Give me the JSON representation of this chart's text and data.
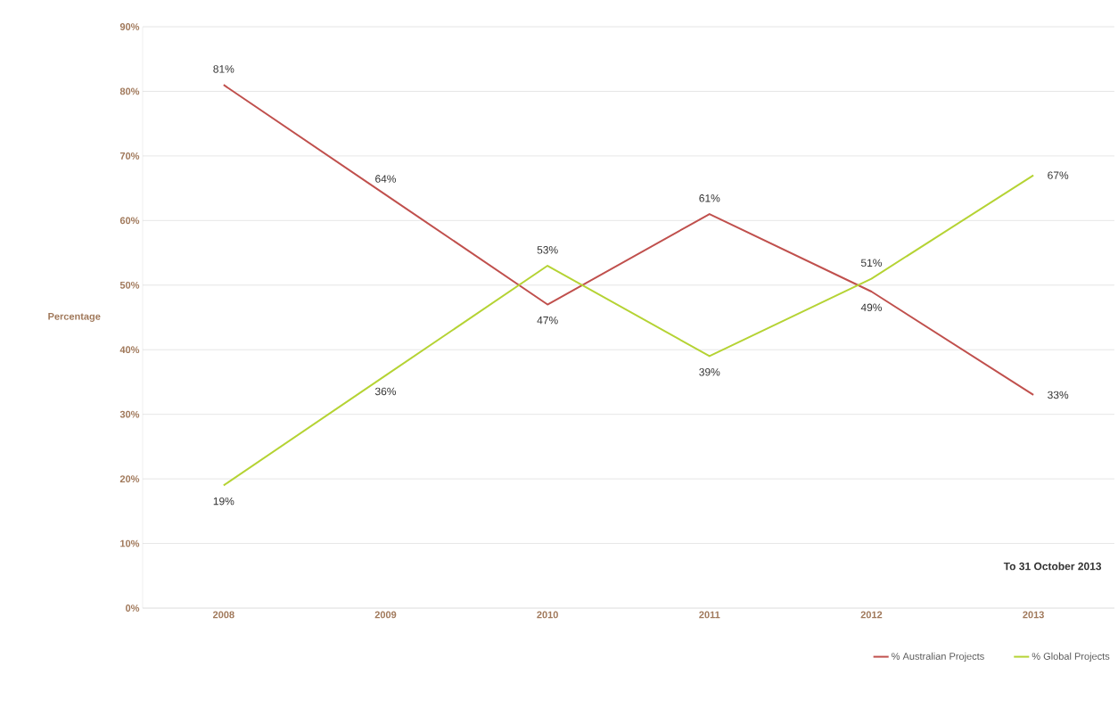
{
  "chart_data": {
    "type": "line",
    "ylabel": "Percentage",
    "annotations": [
      "To 31 October 2013"
    ],
    "categories": [
      "2008",
      "2009",
      "2010",
      "2011",
      "2012",
      "2013"
    ],
    "series": [
      {
        "name": "% Australian Projects",
        "color": "#c0504d",
        "values": [
          81,
          64,
          47,
          61,
          49,
          33
        ],
        "value_labels": [
          "81%",
          "64%",
          "47%",
          "61%",
          "49%",
          "33%"
        ]
      },
      {
        "name": "% Global Projects",
        "color": "#b5d334",
        "values": [
          19,
          36,
          53,
          39,
          51,
          67
        ],
        "value_labels": [
          "19%",
          "36%",
          "53%",
          "39%",
          "51%",
          "67%"
        ]
      }
    ],
    "ylim": [
      0,
      90
    ],
    "yticks": [
      {
        "value": 0,
        "label": "0%"
      },
      {
        "value": 10,
        "label": "10%"
      },
      {
        "value": 20,
        "label": "20%"
      },
      {
        "value": 30,
        "label": "30%"
      },
      {
        "value": 40,
        "label": "40%"
      },
      {
        "value": 50,
        "label": "50%"
      },
      {
        "value": 60,
        "label": "60%"
      },
      {
        "value": 70,
        "label": "70%"
      },
      {
        "value": 80,
        "label": "80%"
      },
      {
        "value": 90,
        "label": "90%"
      }
    ],
    "grid": "y",
    "legend": "bottom right"
  }
}
